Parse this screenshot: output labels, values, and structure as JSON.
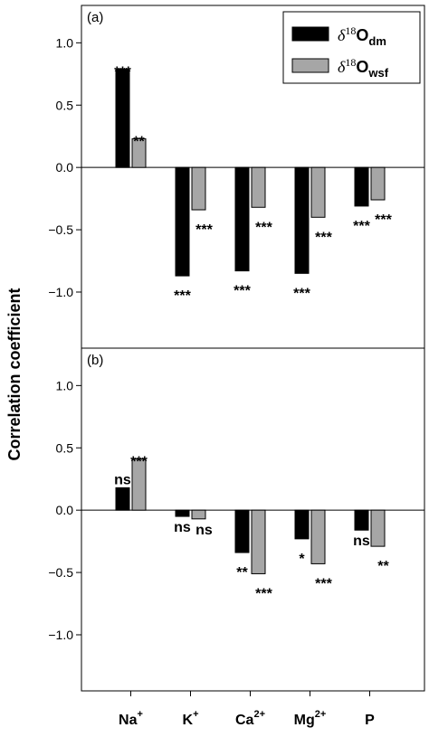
{
  "chart_data": {
    "type": "bar",
    "ylabel": "Correlation coefficient",
    "categories": [
      {
        "base": "Na",
        "sup": "+"
      },
      {
        "base": "K",
        "sup": "+"
      },
      {
        "base": "Ca",
        "sup": "2+"
      },
      {
        "base": "Mg",
        "sup": "2+"
      },
      {
        "base": "P",
        "sup": ""
      }
    ],
    "legend": {
      "placement": "top-right",
      "entries": [
        {
          "prefix": "δ",
          "iso": "18",
          "base": "O",
          "sub": "dm",
          "color": "#000000"
        },
        {
          "prefix": "δ",
          "iso": "18",
          "base": "O",
          "sub": "wsf",
          "color": "#a6a6a6"
        }
      ]
    },
    "ylim": [
      -1.45,
      1.3
    ],
    "yticks": [
      "1.0",
      "0.5",
      "0.0",
      "-0.5",
      "-1.0"
    ],
    "panels": [
      {
        "label": "(a)",
        "show_legend": true,
        "series": [
          {
            "values": [
              0.79,
              -0.87,
              -0.83,
              -0.85,
              -0.31
            ],
            "significance": [
              "***",
              "***",
              "***",
              "***",
              "***"
            ]
          },
          {
            "values": [
              0.23,
              -0.34,
              -0.32,
              -0.4,
              -0.26
            ],
            "significance": [
              "**",
              "***",
              "***",
              "***",
              "***"
            ]
          }
        ]
      },
      {
        "label": "(b)",
        "show_legend": false,
        "series": [
          {
            "values": [
              0.18,
              -0.05,
              -0.34,
              -0.23,
              -0.16
            ],
            "significance": [
              "ns",
              "ns",
              "**",
              "*",
              "ns"
            ]
          },
          {
            "values": [
              0.41,
              -0.07,
              -0.51,
              -0.43,
              -0.29
            ],
            "significance": [
              "***",
              "ns",
              "***",
              "***",
              "**"
            ]
          }
        ]
      }
    ]
  }
}
